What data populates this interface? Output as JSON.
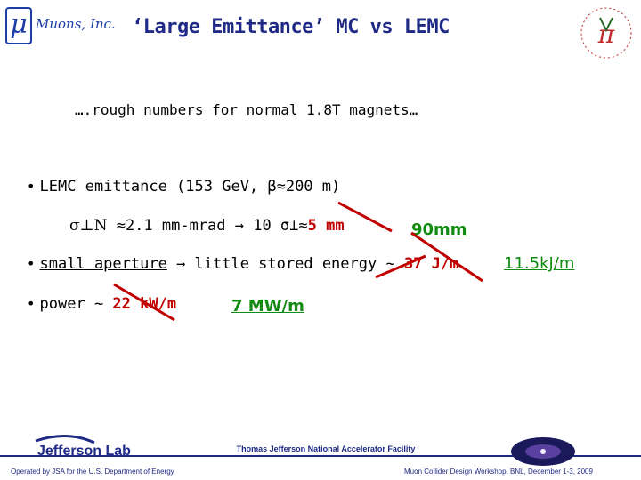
{
  "header": {
    "logo_text": "Muons, Inc.",
    "logo_symbol": "μ",
    "title": "‘Large Emittance’ MC vs LEMC",
    "right_logo_symbol": "π"
  },
  "subtitle": "….rough numbers for normal 1.8T magnets…",
  "bullets": {
    "b1": "LEMC emittance (153 GeV, β≈200 m)",
    "sigma_line": {
      "part1": "σ⊥N",
      "part2": " ≈2.1 mm-mrad → 10 σ⊥≈",
      "part3": "5 mm"
    },
    "b2_pre": "small aperture",
    "b2_mid": " → little stored energy ~ ",
    "b2_val": "37 J/m",
    "b3_pre": "power ~ ",
    "b3_val": "22 kW/m"
  },
  "annotations": {
    "aperture": "90mm",
    "energy": "11.5kJ/m",
    "power": "7 MW/m"
  },
  "footer": {
    "lab": "Jefferson Lab",
    "center": "Thomas Jefferson National Accelerator Facility",
    "left": "Operated by JSA for the U.S. Department of Energy",
    "right": "Muon Collider Design Workshop, BNL, December 1-3, 2009"
  },
  "colors": {
    "title": "#1f2a86",
    "strike": "#c00000",
    "new_value": "#118a11"
  }
}
